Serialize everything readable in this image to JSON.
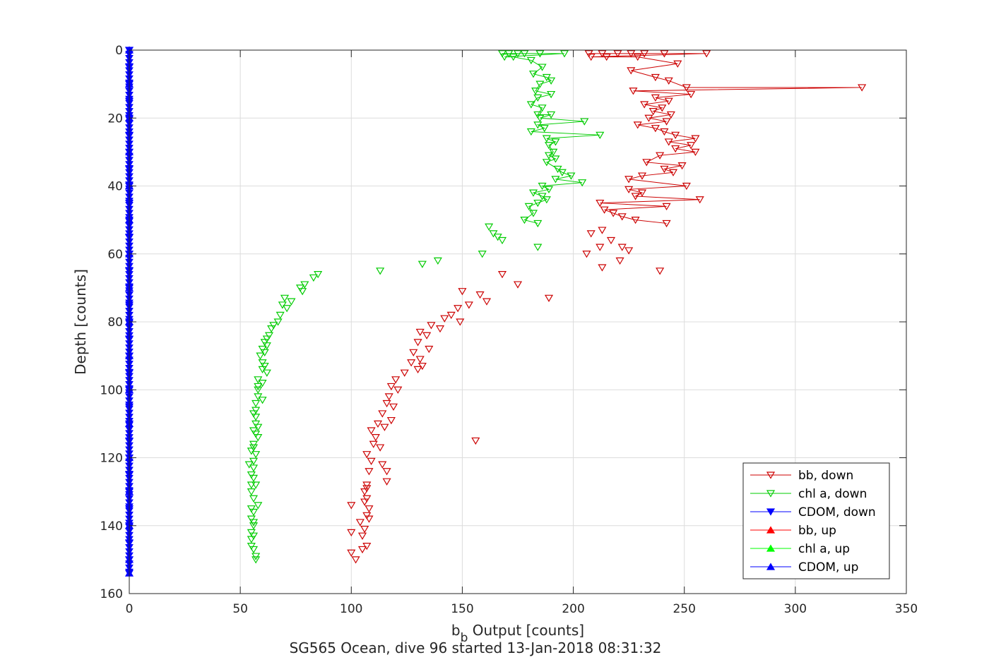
{
  "chart_data": {
    "type": "scatter",
    "title": "",
    "xlabel": {
      "main": "b",
      "sub": "b",
      "rest": " Output [counts]"
    },
    "ylabel": "Depth [counts]",
    "caption": "SG565 Ocean, dive 96 started 13-Jan-2018 08:31:32",
    "xlim": [
      0,
      350
    ],
    "ylim": [
      0,
      160
    ],
    "y_reversed": true,
    "grid": true,
    "xticks": [
      "0",
      "50",
      "100",
      "150",
      "200",
      "250",
      "300",
      "350"
    ],
    "yticks": [
      "0",
      "20",
      "40",
      "60",
      "80",
      "100",
      "120",
      "140",
      "160"
    ],
    "legend_position": "bottom-right",
    "series": [
      {
        "name": "bb, down",
        "color": "#cc0000",
        "marker": "triangle-down",
        "line": true,
        "points": [
          [
            207,
            1
          ],
          [
            213,
            1
          ],
          [
            220,
            1
          ],
          [
            226,
            1
          ],
          [
            232,
            1
          ],
          [
            241,
            1
          ],
          [
            260,
            1
          ],
          [
            208,
            2
          ],
          [
            215,
            2
          ],
          [
            229,
            2
          ],
          [
            247,
            4
          ],
          [
            226,
            6
          ],
          [
            237,
            8
          ],
          [
            243,
            9
          ],
          [
            251,
            11
          ],
          [
            330,
            11
          ],
          [
            227,
            12
          ],
          [
            253,
            13
          ],
          [
            237,
            14
          ],
          [
            243,
            15
          ],
          [
            232,
            16
          ],
          [
            240,
            17
          ],
          [
            236,
            18
          ],
          [
            244,
            19
          ],
          [
            234,
            20
          ],
          [
            242,
            21
          ],
          [
            229,
            22
          ],
          [
            237,
            23
          ],
          [
            241,
            24
          ],
          [
            246,
            25
          ],
          [
            255,
            26
          ],
          [
            243,
            27
          ],
          [
            253,
            28
          ],
          [
            246,
            29
          ],
          [
            255,
            30
          ],
          [
            239,
            31
          ],
          [
            233,
            33
          ],
          [
            249,
            34
          ],
          [
            241,
            35
          ],
          [
            245,
            36
          ],
          [
            231,
            37
          ],
          [
            225,
            38
          ],
          [
            251,
            40
          ],
          [
            225,
            41
          ],
          [
            231,
            42
          ],
          [
            228,
            43
          ],
          [
            257,
            44
          ],
          [
            212,
            45
          ],
          [
            242,
            46
          ],
          [
            214,
            47
          ],
          [
            218,
            48
          ],
          [
            222,
            49
          ],
          [
            228,
            50
          ],
          [
            242,
            51
          ]
        ]
      },
      {
        "name": "chl a, down",
        "color": "#00cc00",
        "marker": "triangle-down",
        "line": true,
        "points": [
          [
            168,
            1
          ],
          [
            171,
            1
          ],
          [
            175,
            1
          ],
          [
            178,
            1
          ],
          [
            185,
            1
          ],
          [
            196,
            1
          ],
          [
            169,
            2
          ],
          [
            173,
            2
          ],
          [
            181,
            3
          ],
          [
            186,
            5
          ],
          [
            182,
            7
          ],
          [
            188,
            8
          ],
          [
            190,
            9
          ],
          [
            185,
            10
          ],
          [
            183,
            12
          ],
          [
            190,
            13
          ],
          [
            184,
            14
          ],
          [
            181,
            16
          ],
          [
            186,
            17
          ],
          [
            184,
            19
          ],
          [
            190,
            19
          ],
          [
            185,
            20
          ],
          [
            205,
            21
          ],
          [
            184,
            22
          ],
          [
            187,
            23
          ],
          [
            181,
            24
          ],
          [
            212,
            25
          ],
          [
            188,
            26
          ],
          [
            192,
            27
          ],
          [
            189,
            28
          ],
          [
            191,
            30
          ],
          [
            189,
            31
          ],
          [
            192,
            32
          ],
          [
            188,
            33
          ],
          [
            193,
            35
          ],
          [
            195,
            36
          ],
          [
            199,
            37
          ],
          [
            192,
            38
          ],
          [
            204,
            39
          ],
          [
            186,
            40
          ],
          [
            189,
            41
          ],
          [
            182,
            42
          ],
          [
            186,
            43
          ],
          [
            188,
            44
          ],
          [
            184,
            45
          ],
          [
            180,
            46
          ],
          [
            182,
            48
          ],
          [
            178,
            50
          ],
          [
            184,
            51
          ]
        ]
      },
      {
        "name": "CDOM, down",
        "color": "#0000ff",
        "marker": "triangle-down",
        "line": true,
        "points": [
          [
            0,
            0
          ],
          [
            0,
            5
          ],
          [
            0,
            10
          ],
          [
            0,
            15
          ],
          [
            0,
            20
          ],
          [
            0,
            25
          ],
          [
            0,
            30
          ],
          [
            0,
            35
          ],
          [
            0,
            40
          ],
          [
            0,
            45
          ],
          [
            0,
            50
          ],
          [
            0,
            55
          ],
          [
            0,
            60
          ],
          [
            0,
            65
          ],
          [
            0,
            70
          ],
          [
            0,
            75
          ],
          [
            0,
            80
          ],
          [
            0,
            85
          ],
          [
            0,
            90
          ],
          [
            0,
            95
          ],
          [
            0,
            100
          ],
          [
            0,
            105
          ],
          [
            0,
            110
          ],
          [
            0,
            115
          ],
          [
            0,
            120
          ],
          [
            0,
            125
          ],
          [
            0,
            130
          ],
          [
            0,
            135
          ],
          [
            0,
            140
          ],
          [
            0,
            145
          ],
          [
            0,
            150
          ],
          [
            0,
            154
          ]
        ]
      },
      {
        "name": "bb, up",
        "color": "#ff0000",
        "marker": "triangle-up",
        "line": true,
        "points": []
      },
      {
        "name": "chl a, up",
        "color": "#00ff00",
        "marker": "triangle-up",
        "line": true,
        "points": []
      },
      {
        "name": "CDOM, up",
        "color": "#0000ff",
        "marker": "triangle-up",
        "line": true,
        "points": [
          [
            0,
            0
          ],
          [
            0,
            10
          ],
          [
            0,
            20
          ],
          [
            0,
            30
          ],
          [
            0,
            40
          ],
          [
            0,
            50
          ],
          [
            0,
            60
          ],
          [
            0,
            70
          ],
          [
            0,
            80
          ],
          [
            0,
            90
          ],
          [
            0,
            100
          ],
          [
            0,
            110
          ],
          [
            0,
            120
          ],
          [
            0,
            130
          ],
          [
            0,
            140
          ],
          [
            0,
            150
          ],
          [
            0,
            154
          ]
        ]
      },
      {
        "name": "",
        "color": "#cc0000",
        "marker": "triangle-down",
        "line": false,
        "legend": false,
        "points": [
          [
            213,
            53
          ],
          [
            208,
            54
          ],
          [
            217,
            56
          ],
          [
            212,
            58
          ],
          [
            222,
            58
          ],
          [
            225,
            59
          ],
          [
            206,
            60
          ],
          [
            239,
            65
          ],
          [
            221,
            62
          ],
          [
            213,
            64
          ],
          [
            168,
            66
          ],
          [
            175,
            69
          ],
          [
            150,
            71
          ],
          [
            158,
            72
          ],
          [
            161,
            74
          ],
          [
            189,
            73
          ],
          [
            153,
            75
          ],
          [
            148,
            76
          ],
          [
            145,
            78
          ],
          [
            142,
            79
          ],
          [
            149,
            80
          ],
          [
            136,
            81
          ],
          [
            140,
            82
          ],
          [
            131,
            83
          ],
          [
            134,
            84
          ],
          [
            130,
            86
          ],
          [
            135,
            88
          ],
          [
            128,
            89
          ],
          [
            131,
            91
          ],
          [
            127,
            92
          ],
          [
            132,
            93
          ],
          [
            130,
            94
          ],
          [
            124,
            95
          ],
          [
            120,
            97
          ],
          [
            118,
            99
          ],
          [
            121,
            100
          ],
          [
            117,
            102
          ],
          [
            116,
            104
          ],
          [
            119,
            105
          ],
          [
            114,
            107
          ],
          [
            118,
            109
          ],
          [
            112,
            110
          ],
          [
            115,
            111
          ],
          [
            109,
            112
          ],
          [
            111,
            114
          ],
          [
            110,
            116
          ],
          [
            113,
            117
          ],
          [
            107,
            119
          ],
          [
            109,
            121
          ],
          [
            114,
            122
          ],
          [
            108,
            124
          ],
          [
            116,
            124
          ],
          [
            116,
            127
          ],
          [
            107,
            128
          ],
          [
            107,
            129
          ],
          [
            106,
            130
          ],
          [
            107,
            132
          ],
          [
            106,
            133
          ],
          [
            100,
            134
          ],
          [
            108,
            135
          ],
          [
            107,
            137
          ],
          [
            108,
            138
          ],
          [
            104,
            139
          ],
          [
            106,
            141
          ],
          [
            100,
            142
          ],
          [
            105,
            143
          ],
          [
            107,
            146
          ],
          [
            105,
            147
          ],
          [
            100,
            148
          ],
          [
            102,
            150
          ],
          [
            156,
            115
          ]
        ]
      },
      {
        "name": "",
        "color": "#00cc00",
        "marker": "triangle-down",
        "line": false,
        "legend": false,
        "points": [
          [
            162,
            52
          ],
          [
            164,
            54
          ],
          [
            166,
            55
          ],
          [
            168,
            56
          ],
          [
            184,
            58
          ],
          [
            159,
            60
          ],
          [
            139,
            62
          ],
          [
            132,
            63
          ],
          [
            113,
            65
          ],
          [
            85,
            66
          ],
          [
            83,
            67
          ],
          [
            79,
            69
          ],
          [
            77,
            70
          ],
          [
            78,
            71
          ],
          [
            70,
            73
          ],
          [
            73,
            74
          ],
          [
            69,
            75
          ],
          [
            71,
            76
          ],
          [
            68,
            78
          ],
          [
            67,
            80
          ],
          [
            65,
            81
          ],
          [
            64,
            82
          ],
          [
            63,
            84
          ],
          [
            62,
            85
          ],
          [
            61,
            86
          ],
          [
            62,
            87
          ],
          [
            60,
            88
          ],
          [
            61,
            89
          ],
          [
            59,
            90
          ],
          [
            60,
            92
          ],
          [
            61,
            93
          ],
          [
            60,
            94
          ],
          [
            62,
            95
          ],
          [
            58,
            97
          ],
          [
            60,
            98
          ],
          [
            58,
            99
          ],
          [
            58,
            100
          ],
          [
            58,
            102
          ],
          [
            60,
            103
          ],
          [
            57,
            104
          ],
          [
            57,
            106
          ],
          [
            56,
            107
          ],
          [
            57,
            108
          ],
          [
            57,
            110
          ],
          [
            58,
            111
          ],
          [
            56,
            112
          ],
          [
            57,
            113
          ],
          [
            58,
            114
          ],
          [
            56,
            116
          ],
          [
            56,
            117
          ],
          [
            55,
            118
          ],
          [
            57,
            119
          ],
          [
            56,
            121
          ],
          [
            54,
            122
          ],
          [
            56,
            123
          ],
          [
            55,
            125
          ],
          [
            56,
            126
          ],
          [
            55,
            128
          ],
          [
            57,
            128
          ],
          [
            55,
            130
          ],
          [
            56,
            132
          ],
          [
            58,
            134
          ],
          [
            55,
            135
          ],
          [
            56,
            136
          ],
          [
            55,
            138
          ],
          [
            56,
            139
          ],
          [
            56,
            140
          ],
          [
            55,
            142
          ],
          [
            56,
            143
          ],
          [
            55,
            144
          ],
          [
            55,
            146
          ],
          [
            56,
            147
          ],
          [
            57,
            149
          ],
          [
            57,
            150
          ]
        ]
      }
    ]
  }
}
